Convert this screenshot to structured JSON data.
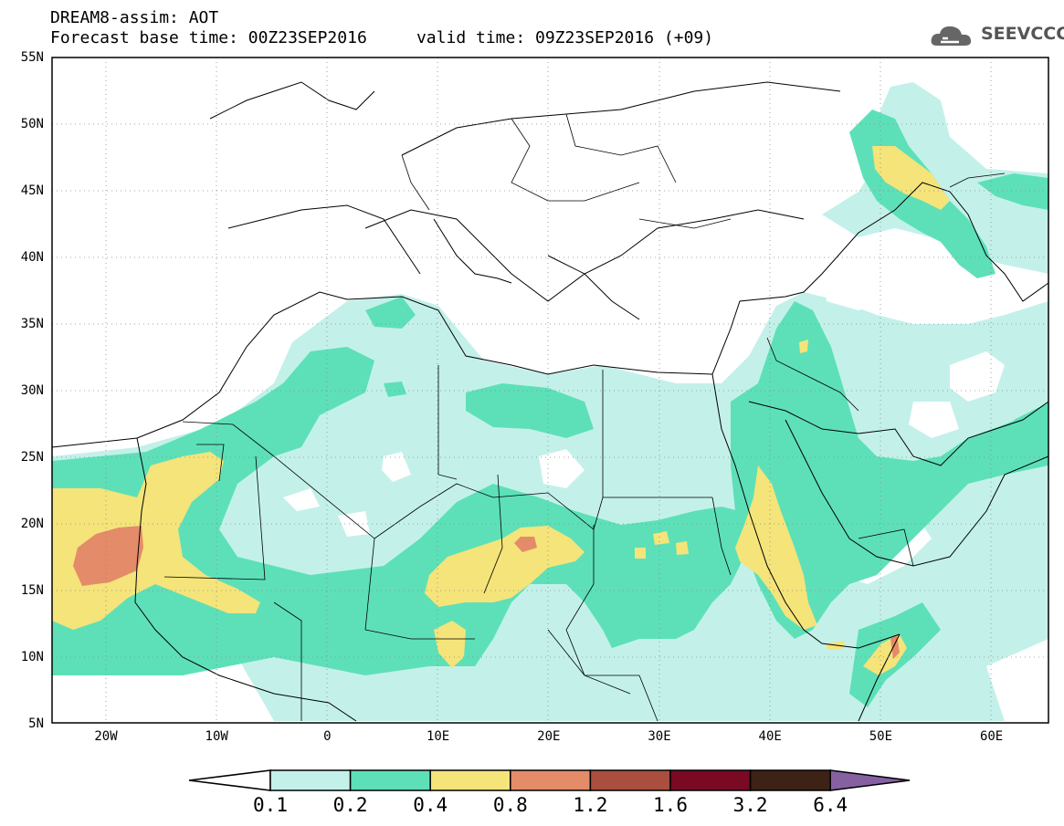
{
  "header": {
    "model_line": "DREAM8-assim: AOT",
    "time_line": "Forecast base time: 00Z23SEP2016     valid time: 09Z23SEP2016 (+09)",
    "logo_text": "SEEVCCC"
  },
  "map": {
    "lon_range": [
      -25,
      65
    ],
    "lat_range": [
      5,
      55
    ],
    "lat_labels": [
      "55N",
      "50N",
      "45N",
      "40N",
      "35N",
      "30N",
      "25N",
      "20N",
      "15N",
      "10N",
      "5N"
    ],
    "lon_labels": [
      "20W",
      "10W",
      "0",
      "10E",
      "20E",
      "30E",
      "40E",
      "50E",
      "60E"
    ]
  },
  "colorbar": {
    "ticks": [
      "0.1",
      "0.2",
      "0.4",
      "0.8",
      "1.2",
      "1.6",
      "3.2",
      "6.4"
    ],
    "colors": [
      "#ffffff",
      "#c3f1ea",
      "#5de0b8",
      "#f4e47a",
      "#e48b6a",
      "#aa4e3e",
      "#7a0a24",
      "#3d2216",
      "#8561a2"
    ]
  }
}
